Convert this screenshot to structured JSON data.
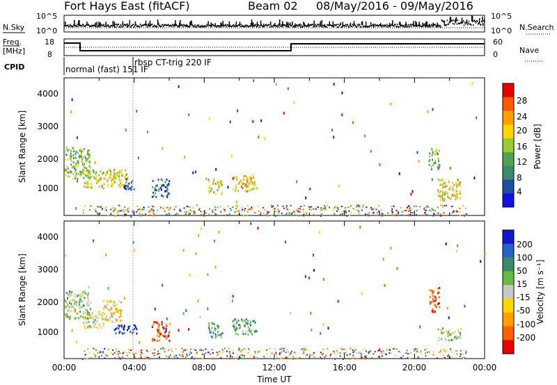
{
  "header": {
    "title": "Fort Hays East (fitACF)",
    "beam": "Beam 02",
    "dates": "08/May/2016 - 09/May/2016"
  },
  "top_panel": {
    "left_label": "N.Sky",
    "left_ticks": [
      "10^5",
      "10^0"
    ],
    "right_label": "N.Search",
    "right_ticks": [
      "10^5",
      "10^0"
    ]
  },
  "freq_panel": {
    "left_label_1": "Freq.",
    "left_label_2": "[MHz]",
    "left_ticks": [
      "18",
      "8"
    ],
    "right_label": "Nave",
    "right_ticks": [
      "60",
      "0"
    ],
    "cpid_label": "CPID",
    "modes": [
      "normal (fast) 151 IF",
      "rbsp CT-trig 220 IF"
    ]
  },
  "chart_data": [
    {
      "type": "heatmap",
      "title": "",
      "ylabel": "Slant Range [km]",
      "xlabel": "",
      "ylim": [
        200,
        4600
      ],
      "y_ticks": [
        "4000",
        "3000",
        "2000",
        "1000"
      ],
      "x_hours": [
        0,
        24
      ],
      "colorbar_label": "Power [dB]",
      "colorbar_ticks": [
        "28",
        "24",
        "20",
        "16",
        "12",
        "8",
        "4"
      ],
      "colorbar_colors": [
        "#e80000",
        "#ff5a00",
        "#ffa000",
        "#ffd700",
        "#99cc33",
        "#55a055",
        "#3c8a6e",
        "#1e4f9c",
        "#1212e0"
      ],
      "blobs": [
        {
          "t0": 0.0,
          "t1": 1.5,
          "r0": 1400,
          "r1": 2400,
          "level": 0.55
        },
        {
          "t0": 1.0,
          "t1": 3.6,
          "r0": 1100,
          "r1": 1700,
          "level": 0.45
        },
        {
          "t0": 3.4,
          "t1": 4.0,
          "r0": 1050,
          "r1": 1400,
          "level": 0.85
        },
        {
          "t0": 5.0,
          "t1": 6.0,
          "r0": 800,
          "r1": 1400,
          "level": 0.8
        },
        {
          "t0": 8.2,
          "t1": 9.0,
          "r0": 900,
          "r1": 1400,
          "level": 0.45
        },
        {
          "t0": 9.6,
          "t1": 11.0,
          "r0": 1000,
          "r1": 1500,
          "level": 0.35
        },
        {
          "t0": 20.8,
          "t1": 21.4,
          "r0": 1700,
          "r1": 2400,
          "level": 0.6
        },
        {
          "t0": 21.3,
          "t1": 22.6,
          "r0": 700,
          "r1": 1400,
          "level": 0.4
        }
      ]
    },
    {
      "type": "heatmap",
      "title": "",
      "ylabel": "Slant Range [km]",
      "xlabel": "Time UT",
      "ylim": [
        200,
        4600
      ],
      "y_ticks": [
        "4000",
        "3000",
        "2000",
        "1000"
      ],
      "x_ticks": [
        "00:00",
        "04:00",
        "08:00",
        "12:00",
        "16:00",
        "20:00",
        "00:00"
      ],
      "colorbar_label": "Velocity [m s⁻¹]",
      "colorbar_ticks": [
        "200",
        "100",
        "50",
        "15",
        "-15",
        "-50",
        "-100",
        "-200"
      ],
      "colorbar_colors": [
        "#1414c8",
        "#2860c8",
        "#3c8a6e",
        "#66bb44",
        "#c8c8c8",
        "#ffd700",
        "#ffa000",
        "#ff6000",
        "#e80000"
      ],
      "blobs": [
        {
          "t0": 0.0,
          "t1": 1.5,
          "r0": 1500,
          "r1": 2400,
          "level": 0.45
        },
        {
          "t0": 1.0,
          "t1": 2.3,
          "r0": 1200,
          "r1": 1700,
          "level": 0.5
        },
        {
          "t0": 2.2,
          "t1": 3.3,
          "r0": 1400,
          "r1": 2100,
          "level": 0.6
        },
        {
          "t0": 2.8,
          "t1": 4.2,
          "r0": 1000,
          "r1": 1300,
          "level": 0.1
        },
        {
          "t0": 5.0,
          "t1": 6.0,
          "r0": 800,
          "r1": 1400,
          "level": 0.85
        },
        {
          "t0": 8.2,
          "t1": 9.0,
          "r0": 900,
          "r1": 1400,
          "level": 0.35
        },
        {
          "t0": 9.6,
          "t1": 11.0,
          "r0": 1000,
          "r1": 1500,
          "level": 0.3
        },
        {
          "t0": 20.8,
          "t1": 21.4,
          "r0": 1700,
          "r1": 2500,
          "level": 0.85
        },
        {
          "t0": 21.3,
          "t1": 22.6,
          "r0": 800,
          "r1": 1200,
          "level": 0.45
        }
      ]
    }
  ]
}
